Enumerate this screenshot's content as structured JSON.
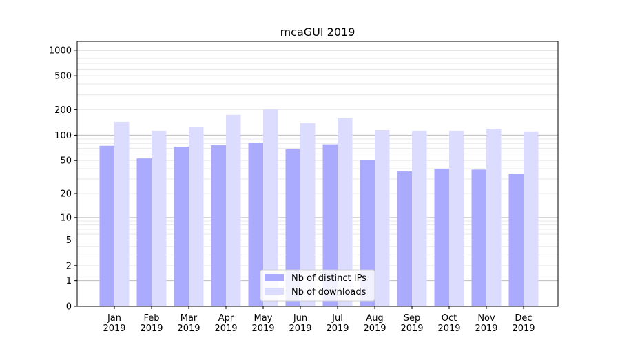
{
  "chart_data": {
    "type": "bar",
    "title": "mcaGUI 2019",
    "xlabel": "",
    "ylabel": "",
    "y_scale": "log10(1+y)",
    "ylim": [
      0,
      1270
    ],
    "yticks": [
      0,
      1,
      2,
      5,
      10,
      20,
      50,
      100,
      200,
      500,
      1000
    ],
    "grid": true,
    "legend_position": "lower center",
    "categories": [
      "Jan\n2019",
      "Feb\n2019",
      "Mar\n2019",
      "Apr\n2019",
      "May\n2019",
      "Jun\n2019",
      "Jul\n2019",
      "Aug\n2019",
      "Sep\n2019",
      "Oct\n2019",
      "Nov\n2019",
      "Dec\n2019"
    ],
    "series": [
      {
        "name": "Nb of distinct IPs",
        "color": "#aaaaff",
        "values": [
          75,
          53,
          73,
          76,
          82,
          68,
          78,
          51,
          37,
          40,
          39,
          35
        ]
      },
      {
        "name": "Nb of downloads",
        "color": "#dcdcff",
        "values": [
          144,
          113,
          126,
          174,
          201,
          139,
          158,
          115,
          113,
          113,
          119,
          111
        ]
      }
    ]
  }
}
